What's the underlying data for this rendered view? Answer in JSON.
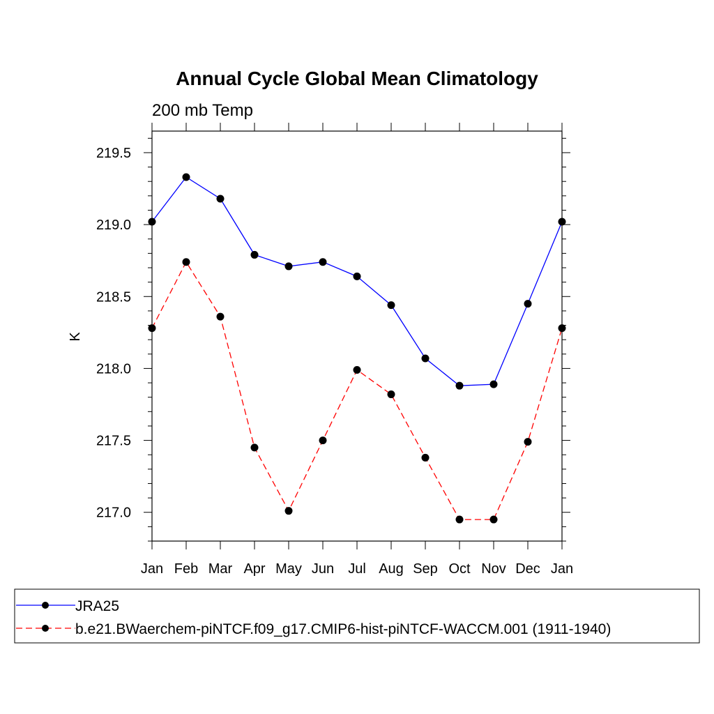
{
  "chart_data": {
    "type": "line",
    "title": "Annual Cycle Global Mean Climatology",
    "subtitle": "200 mb Temp",
    "ylabel": "K",
    "xlabel": "",
    "categories": [
      "Jan",
      "Feb",
      "Mar",
      "Apr",
      "May",
      "Jun",
      "Jul",
      "Aug",
      "Sep",
      "Oct",
      "Nov",
      "Dec",
      "Jan"
    ],
    "ylim": [
      216.8,
      219.65
    ],
    "yticks": [
      217.0,
      217.5,
      218.0,
      218.5,
      219.0,
      219.5
    ],
    "ytick_labels": [
      "217.0",
      "217.5",
      "218.0",
      "218.5",
      "219.0",
      "219.5"
    ],
    "grid": false,
    "legend_placement": "bottom",
    "series": [
      {
        "name": "JRA25",
        "color": "#0000ff",
        "dash": "solid",
        "marker": "filled-circle",
        "values": [
          219.02,
          219.33,
          219.18,
          218.79,
          218.71,
          218.74,
          218.64,
          218.44,
          218.07,
          217.88,
          217.89,
          218.45,
          219.02
        ]
      },
      {
        "name": "b.e21.BWaerchem-piNTCF.f09_g17.CMIP6-hist-piNTCF-WACCM.001 (1911-1940)",
        "color": "#ff0000",
        "dash": "dashed",
        "marker": "filled-circle",
        "values": [
          218.28,
          218.74,
          218.36,
          217.45,
          217.01,
          217.5,
          217.99,
          217.82,
          217.38,
          216.95,
          216.95,
          217.49,
          218.28
        ]
      }
    ]
  }
}
